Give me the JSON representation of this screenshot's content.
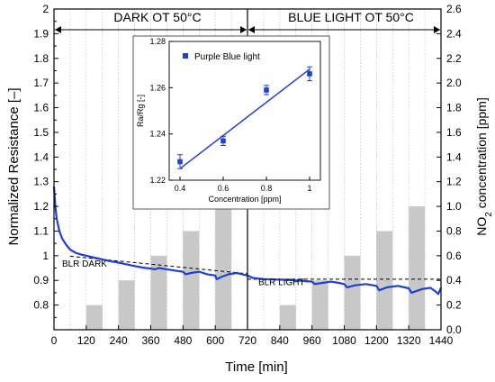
{
  "chart_data": [
    {
      "type": "line",
      "title": "",
      "xlabel": "Time [min]",
      "ylabel_left": "Normalized Resistance [–]",
      "ylabel_right": "NO2 concentration [ppm]",
      "xlim": [
        0,
        1440
      ],
      "ylim_left": [
        0.7,
        2.0
      ],
      "ylim_right": [
        0.0,
        2.6
      ],
      "x_ticks": [
        0,
        120,
        240,
        360,
        480,
        600,
        720,
        840,
        960,
        1080,
        1200,
        1320,
        1440
      ],
      "y_ticks_left": [
        0.8,
        0.9,
        1,
        1.1,
        1.2,
        1.3,
        1.4,
        1.5,
        1.6,
        1.7,
        1.8,
        1.9,
        2
      ],
      "y_ticks_right": [
        0.0,
        0.2,
        0.4,
        0.6,
        0.8,
        1.0,
        1.2,
        1.4,
        1.6,
        1.8,
        2.0,
        2.2,
        2.4,
        2.6
      ],
      "grid": "vertical dotted",
      "regions": [
        {
          "label": "DARK OT 50°C",
          "x_range": [
            0,
            720
          ]
        },
        {
          "label": "BLUE LIGHT OT 50°C",
          "x_range": [
            720,
            1440
          ]
        }
      ],
      "region_divider_x": 720,
      "annotations": [
        {
          "text": "BLR DARK",
          "x": 30,
          "y": 0.955
        },
        {
          "text": "BLR LIGHT",
          "x": 760,
          "y": 0.88
        }
      ],
      "baselines": [
        {
          "name": "BLR DARK",
          "x": [
            60,
            720
          ],
          "y": [
            0.998,
            0.927
          ]
        },
        {
          "name": "BLR LIGHT",
          "x": [
            720,
            1440
          ],
          "y": [
            0.905,
            0.905
          ]
        }
      ],
      "series": [
        {
          "name": "Normalized resistance",
          "axis": "left",
          "color": "#1f3fd6",
          "points": [
            [
              0,
              1.28
            ],
            [
              5,
              1.2
            ],
            [
              10,
              1.15
            ],
            [
              20,
              1.1
            ],
            [
              30,
              1.07
            ],
            [
              45,
              1.045
            ],
            [
              60,
              1.025
            ],
            [
              80,
              1.012
            ],
            [
              100,
              1.005
            ],
            [
              120,
              1.0
            ],
            [
              150,
              0.992
            ],
            [
              180,
              0.985
            ],
            [
              210,
              0.978
            ],
            [
              240,
              0.972
            ],
            [
              270,
              0.965
            ],
            [
              300,
              0.958
            ],
            [
              330,
              0.952
            ],
            [
              360,
              0.948
            ],
            [
              375,
              0.945
            ],
            [
              390,
              0.95
            ],
            [
              420,
              0.945
            ],
            [
              450,
              0.94
            ],
            [
              480,
              0.935
            ],
            [
              490,
              0.925
            ],
            [
              510,
              0.93
            ],
            [
              540,
              0.935
            ],
            [
              570,
              0.925
            ],
            [
              600,
              0.92
            ],
            [
              605,
              0.905
            ],
            [
              625,
              0.915
            ],
            [
              650,
              0.925
            ],
            [
              680,
              0.93
            ],
            [
              700,
              0.925
            ],
            [
              720,
              0.92
            ],
            [
              740,
              0.91
            ],
            [
              780,
              0.905
            ],
            [
              840,
              0.903
            ],
            [
              900,
              0.9
            ],
            [
              960,
              0.895
            ],
            [
              970,
              0.885
            ],
            [
              1000,
              0.89
            ],
            [
              1030,
              0.895
            ],
            [
              1060,
              0.89
            ],
            [
              1080,
              0.885
            ],
            [
              1090,
              0.872
            ],
            [
              1120,
              0.88
            ],
            [
              1160,
              0.885
            ],
            [
              1200,
              0.878
            ],
            [
              1210,
              0.86
            ],
            [
              1240,
              0.872
            ],
            [
              1280,
              0.878
            ],
            [
              1320,
              0.868
            ],
            [
              1330,
              0.85
            ],
            [
              1370,
              0.865
            ],
            [
              1400,
              0.87
            ],
            [
              1420,
              0.855
            ],
            [
              1430,
              0.845
            ],
            [
              1440,
              0.87
            ]
          ]
        }
      ],
      "bars": {
        "name": "NO2 concentration",
        "axis": "right",
        "color": "#c8c8c8",
        "items": [
          {
            "x0": 120,
            "x1": 180,
            "value": 0.2
          },
          {
            "x0": 240,
            "x1": 300,
            "value": 0.4
          },
          {
            "x0": 360,
            "x1": 420,
            "value": 0.6
          },
          {
            "x0": 480,
            "x1": 540,
            "value": 0.8
          },
          {
            "x0": 600,
            "x1": 660,
            "value": 1.0
          },
          {
            "x0": 840,
            "x1": 900,
            "value": 0.2
          },
          {
            "x0": 960,
            "x1": 1020,
            "value": 0.4
          },
          {
            "x0": 1080,
            "x1": 1140,
            "value": 0.6
          },
          {
            "x0": 1200,
            "x1": 1260,
            "value": 0.8
          },
          {
            "x0": 1320,
            "x1": 1380,
            "value": 1.0
          }
        ]
      }
    },
    {
      "type": "scatter",
      "title": "",
      "xlabel": "Concentration [ppm]",
      "ylabel": "Ra/Rg [-]",
      "xlim": [
        0.35,
        1.05
      ],
      "ylim": [
        1.22,
        1.28
      ],
      "x_ticks": [
        0.4,
        0.6,
        0.8,
        1
      ],
      "y_ticks": [
        1.22,
        1.24,
        1.26,
        1.28
      ],
      "legend": "top-left",
      "series": [
        {
          "name": "Purple Blue light",
          "color": "#1f3fd6",
          "x": [
            0.4,
            0.6,
            0.8,
            1.0
          ],
          "y": [
            1.228,
            1.237,
            1.259,
            1.266
          ],
          "err": [
            0.003,
            0.002,
            0.002,
            0.003
          ],
          "fit": {
            "x": [
              0.4,
              1.0
            ],
            "y": [
              1.225,
              1.268
            ]
          }
        }
      ]
    }
  ]
}
